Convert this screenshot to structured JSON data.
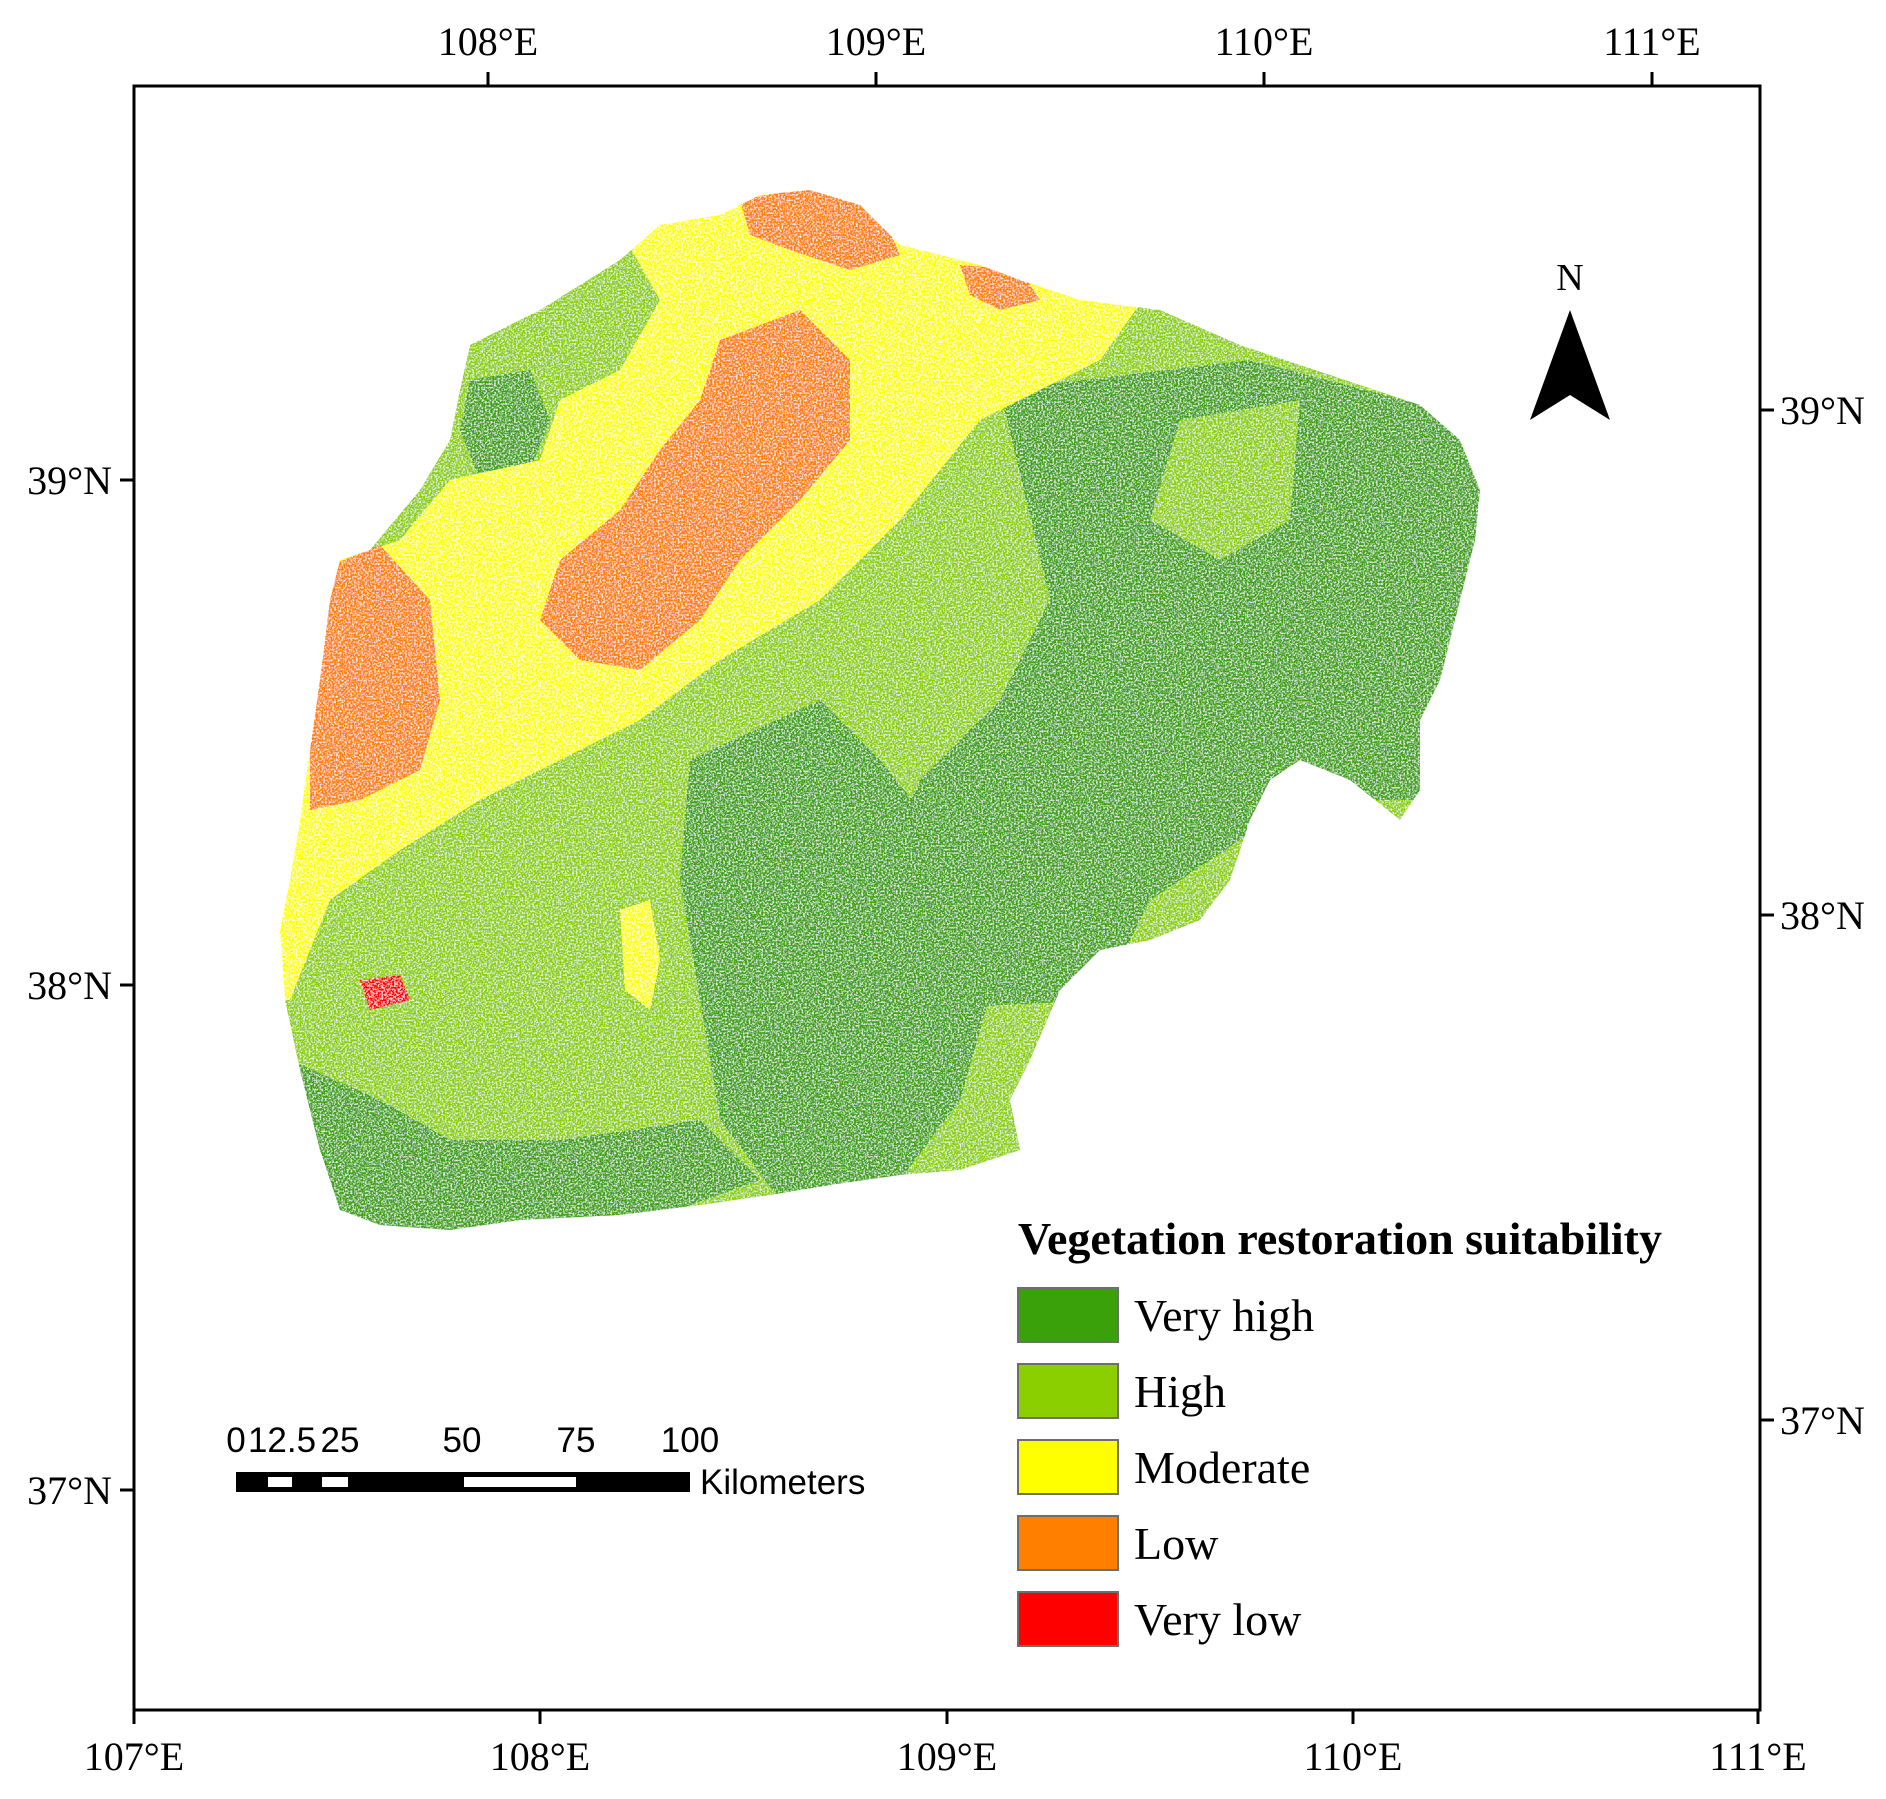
{
  "map": {
    "frame_color": "#000000",
    "top_axis_labels": [
      "108°E",
      "109°E",
      "110°E",
      "111°E"
    ],
    "bottom_axis_labels": [
      "107°E",
      "108°E",
      "109°E",
      "110°E",
      "111°E"
    ],
    "left_axis_labels": [
      "39°N",
      "38°N",
      "37°N"
    ],
    "right_axis_labels": [
      "39°N",
      "38°N",
      "37°N"
    ],
    "north_arrow": {
      "label": "N",
      "icon": "north-arrow-icon"
    },
    "scale_bar": {
      "tick_labels": [
        "0",
        "12.5",
        "25",
        "50",
        "75",
        "100"
      ],
      "unit": "Kilometers"
    },
    "legend": {
      "title": "Vegetation restoration suitability",
      "items": [
        {
          "label": "Very high",
          "color": "#3aa10a"
        },
        {
          "label": "High",
          "color": "#8ccf00"
        },
        {
          "label": "Moderate",
          "color": "#ffff00"
        },
        {
          "label": "Low",
          "color": "#ff8000"
        },
        {
          "label": "Very low",
          "color": "#ff0000"
        }
      ]
    }
  }
}
